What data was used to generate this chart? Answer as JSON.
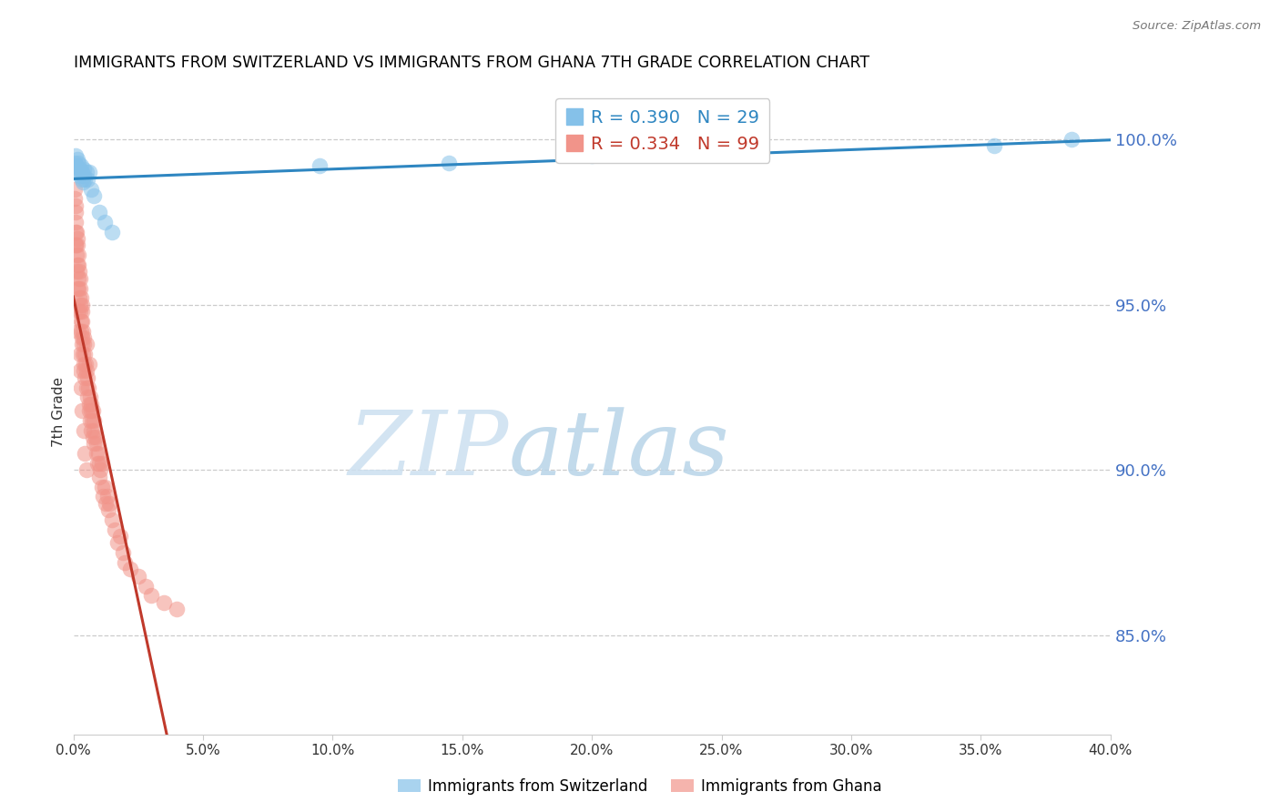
{
  "title": "IMMIGRANTS FROM SWITZERLAND VS IMMIGRANTS FROM GHANA 7TH GRADE CORRELATION CHART",
  "source": "Source: ZipAtlas.com",
  "ylabel": "7th Grade",
  "xlim": [
    0.0,
    40.0
  ],
  "ylim": [
    82.0,
    101.5
  ],
  "yticks": [
    85.0,
    90.0,
    95.0,
    100.0
  ],
  "xticks": [
    0.0,
    5.0,
    10.0,
    15.0,
    20.0,
    25.0,
    30.0,
    35.0,
    40.0
  ],
  "swiss_color": "#85c1e9",
  "ghana_color": "#f1948a",
  "swiss_line_color": "#2e86c1",
  "ghana_line_color": "#c0392b",
  "legend_swiss": "Immigrants from Switzerland",
  "legend_ghana": "Immigrants from Ghana",
  "R_swiss": 0.39,
  "N_swiss": 29,
  "R_ghana": 0.334,
  "N_ghana": 99,
  "watermark_zip": "ZIP",
  "watermark_atlas": "atlas",
  "swiss_x": [
    0.05,
    0.1,
    0.12,
    0.15,
    0.18,
    0.2,
    0.22,
    0.25,
    0.28,
    0.3,
    0.32,
    0.35,
    0.38,
    0.4,
    0.42,
    0.45,
    0.5,
    0.55,
    0.6,
    0.7,
    0.8,
    1.0,
    1.2,
    1.5,
    9.5,
    14.5,
    20.0,
    35.5,
    38.5
  ],
  "swiss_y": [
    99.3,
    99.5,
    99.2,
    99.4,
    99.1,
    99.3,
    99.0,
    98.9,
    99.1,
    99.2,
    98.8,
    99.0,
    98.7,
    99.1,
    98.9,
    98.8,
    99.0,
    98.8,
    99.0,
    98.5,
    98.3,
    97.8,
    97.5,
    97.2,
    99.2,
    99.3,
    99.5,
    99.8,
    100.0
  ],
  "ghana_x": [
    0.05,
    0.07,
    0.08,
    0.1,
    0.1,
    0.12,
    0.13,
    0.15,
    0.15,
    0.16,
    0.18,
    0.18,
    0.2,
    0.2,
    0.22,
    0.22,
    0.25,
    0.25,
    0.27,
    0.28,
    0.3,
    0.3,
    0.3,
    0.32,
    0.32,
    0.35,
    0.35,
    0.35,
    0.38,
    0.38,
    0.4,
    0.4,
    0.42,
    0.42,
    0.45,
    0.45,
    0.48,
    0.5,
    0.5,
    0.52,
    0.55,
    0.55,
    0.58,
    0.6,
    0.6,
    0.62,
    0.65,
    0.65,
    0.68,
    0.7,
    0.7,
    0.72,
    0.75,
    0.75,
    0.78,
    0.8,
    0.8,
    0.85,
    0.88,
    0.9,
    0.92,
    0.95,
    1.0,
    1.0,
    1.05,
    1.1,
    1.1,
    1.15,
    1.2,
    1.25,
    1.3,
    1.35,
    1.4,
    1.5,
    1.6,
    1.7,
    1.8,
    1.9,
    2.0,
    2.2,
    2.5,
    2.8,
    3.0,
    3.5,
    4.0,
    0.05,
    0.08,
    0.1,
    0.12,
    0.15,
    0.18,
    0.2,
    0.25,
    0.28,
    0.3,
    0.35,
    0.4,
    0.45,
    0.5
  ],
  "ghana_y": [
    98.2,
    97.8,
    98.0,
    97.5,
    96.8,
    97.2,
    96.5,
    97.0,
    96.2,
    96.8,
    96.5,
    95.8,
    96.2,
    95.5,
    96.0,
    95.2,
    95.8,
    95.0,
    95.5,
    94.8,
    95.2,
    94.5,
    94.2,
    94.8,
    94.0,
    94.5,
    93.8,
    95.0,
    94.2,
    93.5,
    94.0,
    93.2,
    93.8,
    93.0,
    93.5,
    92.8,
    93.2,
    93.8,
    92.5,
    93.0,
    92.8,
    92.2,
    92.5,
    92.0,
    93.2,
    91.8,
    92.2,
    91.5,
    91.8,
    92.0,
    91.2,
    91.5,
    91.8,
    91.0,
    91.2,
    91.5,
    90.8,
    91.0,
    90.5,
    90.8,
    90.2,
    90.5,
    90.2,
    89.8,
    90.0,
    89.5,
    90.2,
    89.2,
    89.5,
    89.0,
    89.2,
    88.8,
    89.0,
    88.5,
    88.2,
    87.8,
    88.0,
    87.5,
    87.2,
    87.0,
    86.8,
    86.5,
    86.2,
    86.0,
    85.8,
    98.5,
    97.2,
    96.8,
    96.0,
    95.5,
    94.8,
    94.2,
    93.5,
    93.0,
    92.5,
    91.8,
    91.2,
    90.5,
    90.0
  ]
}
